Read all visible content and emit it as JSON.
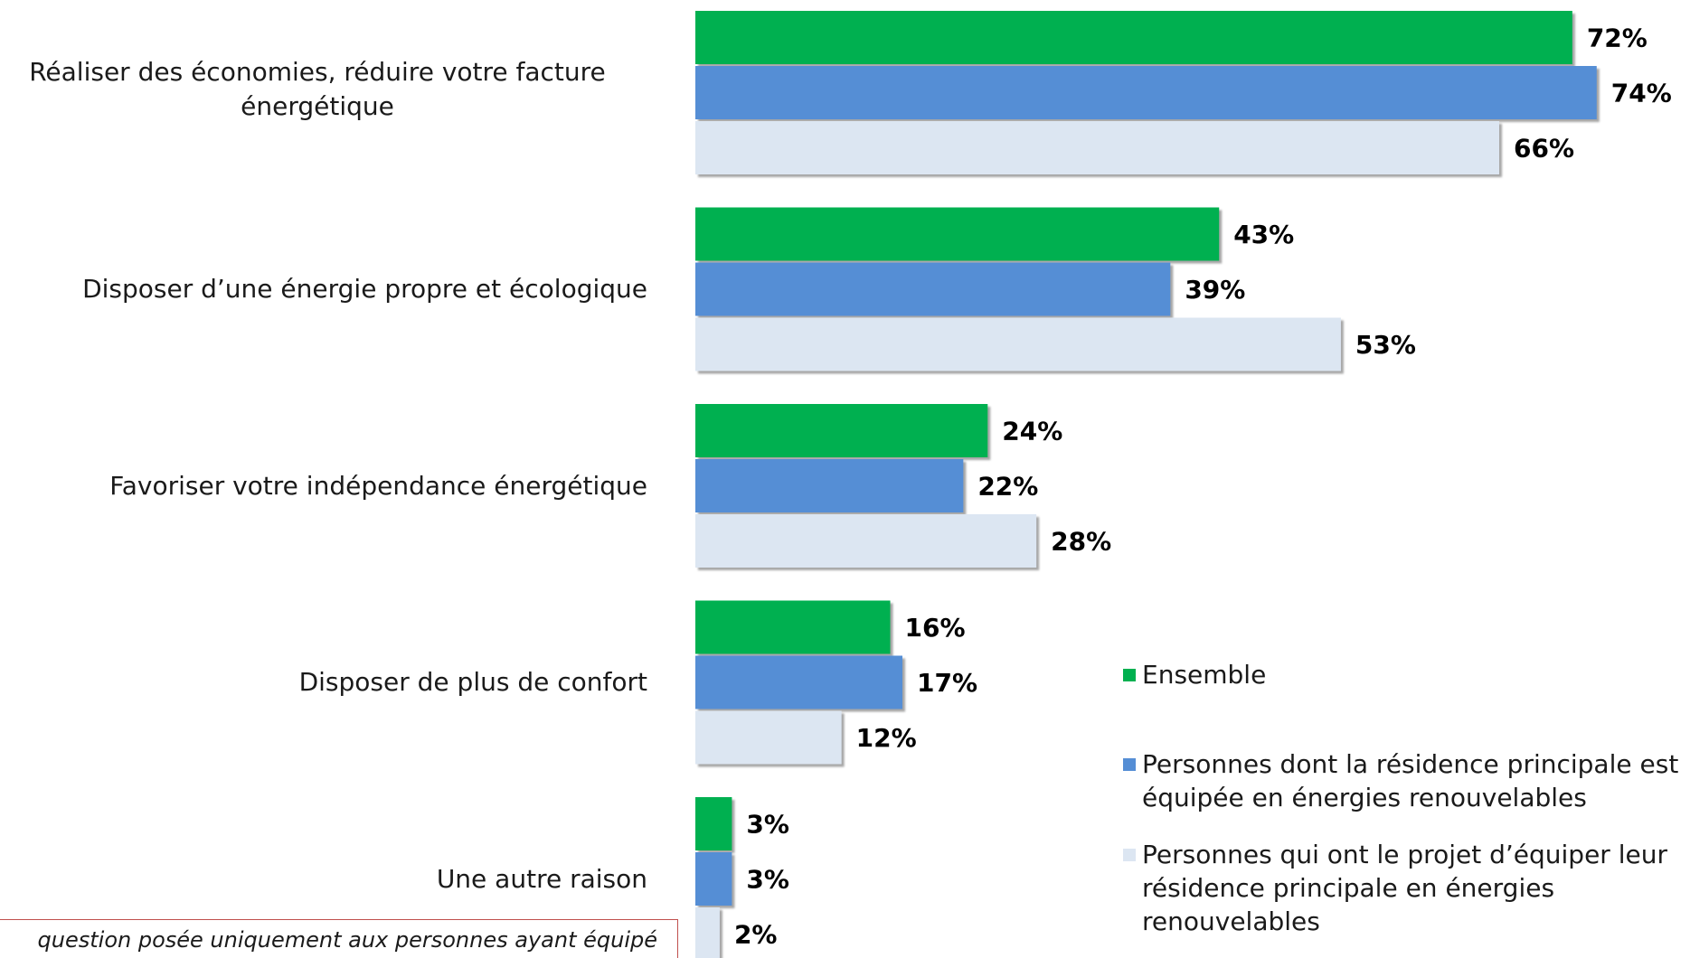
{
  "chart_data": {
    "type": "bar",
    "orientation": "horizontal",
    "categories": [
      "Réaliser des économies, réduire votre facture énergétique",
      "Disposer d’une énergie propre et écologique",
      "Favoriser votre indépendance énergétique",
      "Disposer de plus de confort",
      "Une autre raison"
    ],
    "series": [
      {
        "name": "Ensemble",
        "color": "#00b050",
        "values": [
          72,
          43,
          24,
          16,
          3
        ],
        "value_labels": [
          "72%",
          "43%",
          "24%",
          "16%",
          "3%"
        ]
      },
      {
        "name": "Personnes dont la résidence principale est équipée en énergies renouvelables",
        "color": "#558ed5",
        "values": [
          74,
          39,
          22,
          17,
          3
        ],
        "value_labels": [
          "74%",
          "39%",
          "22%",
          "17%",
          "3%"
        ]
      },
      {
        "name": "Personnes qui ont le projet d’équiper leur résidence principale en énergies renouvelables",
        "color": "#dce6f2",
        "values": [
          66,
          53,
          28,
          12,
          2
        ],
        "value_labels": [
          "66%",
          "53%",
          "28%",
          "12%",
          "2%"
        ]
      }
    ],
    "note": "question posée uniquement aux personnes ayant équipé"
  }
}
